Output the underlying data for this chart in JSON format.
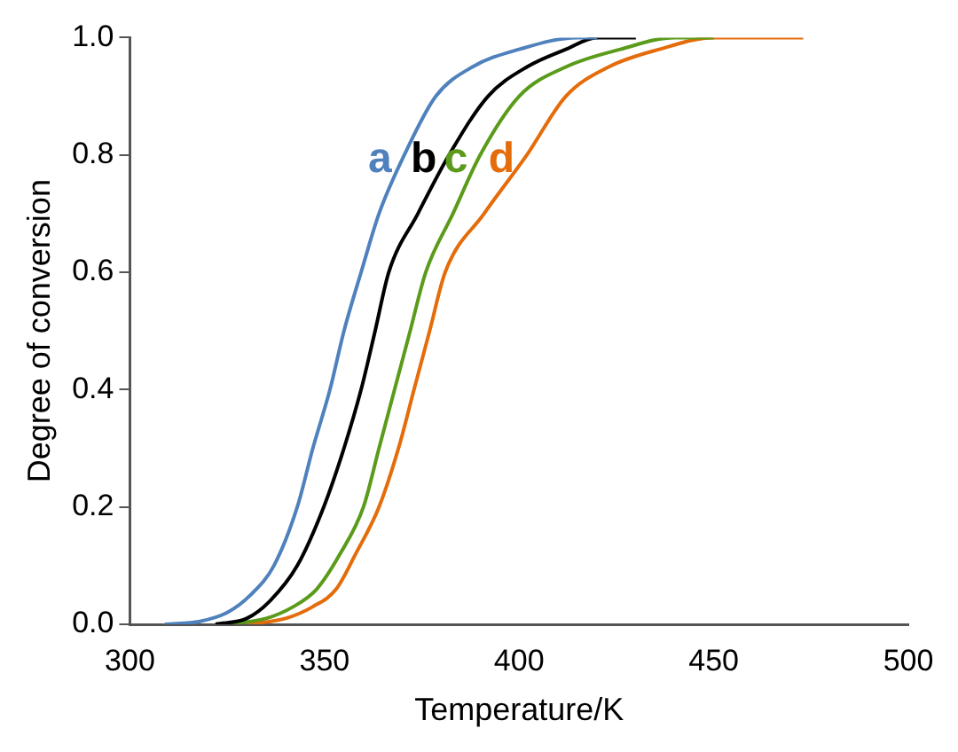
{
  "chart_data": {
    "type": "line",
    "xlabel": "Temperature/K",
    "ylabel": "Degree of conversion",
    "xlim": [
      300,
      500
    ],
    "xticks": [
      300,
      350,
      400,
      450,
      500
    ],
    "ylim": [
      0,
      1
    ],
    "yticks": [
      {
        "value": 0,
        "label": "0.0"
      },
      {
        "value": 0.2,
        "label": "0.2"
      },
      {
        "value": 0.4,
        "label": "0.4"
      },
      {
        "value": 0.6,
        "label": "0.6"
      },
      {
        "value": 0.8,
        "label": "0.8"
      },
      {
        "value": 1,
        "label": "1.0"
      }
    ],
    "grid": false,
    "legend": false,
    "marker": "none",
    "line_style": "solid",
    "series": [
      {
        "name": "a",
        "color": "#4f81bd",
        "x": [
          309,
          318,
          325,
          331,
          337,
          343,
          347,
          351.4,
          355,
          359.4,
          364,
          370.5,
          378.6,
          388,
          400,
          415,
          420
        ],
        "values": [
          0,
          0.005,
          0.02,
          0.05,
          0.1,
          0.2,
          0.3,
          0.4,
          0.5,
          0.6,
          0.7,
          0.8,
          0.9,
          0.95,
          0.98,
          1,
          1
        ]
      },
      {
        "name": "b",
        "color": "#000000",
        "x": [
          322,
          330,
          336,
          343,
          349.8,
          355,
          359.4,
          363,
          366.5,
          374,
          382,
          392,
          402,
          412,
          420,
          430
        ],
        "values": [
          0,
          0.01,
          0.04,
          0.1,
          0.2,
          0.3,
          0.4,
          0.5,
          0.6,
          0.7,
          0.8,
          0.9,
          0.95,
          0.98,
          1,
          1
        ]
      },
      {
        "name": "c",
        "color": "#5b9b1b",
        "x": [
          325,
          335,
          342,
          348,
          354,
          360,
          364,
          368,
          372,
          376,
          383,
          390,
          400,
          412,
          426,
          440,
          450
        ],
        "values": [
          0,
          0.01,
          0.03,
          0.06,
          0.12,
          0.2,
          0.3,
          0.4,
          0.5,
          0.6,
          0.7,
          0.8,
          0.9,
          0.95,
          0.98,
          1,
          1
        ]
      },
      {
        "name": "d",
        "color": "#e46c0a",
        "x": [
          330,
          340,
          347,
          353,
          358,
          364,
          369,
          373,
          377,
          381,
          391,
          402,
          412,
          423,
          436,
          450,
          473
        ],
        "values": [
          0,
          0.01,
          0.03,
          0.06,
          0.12,
          0.2,
          0.3,
          0.4,
          0.5,
          0.6,
          0.7,
          0.8,
          0.9,
          0.95,
          0.98,
          1,
          1
        ]
      }
    ]
  }
}
